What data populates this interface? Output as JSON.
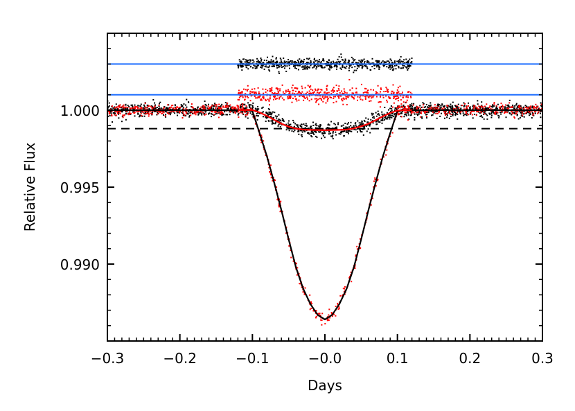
{
  "chart_data": {
    "type": "scatter",
    "title": "",
    "xlabel": "Days",
    "ylabel": "Relative Flux",
    "xlim": [
      -0.3,
      0.3
    ],
    "ylim": [
      0.985,
      1.005
    ],
    "grid": false,
    "legend": "none",
    "x_ticks": [
      {
        "value": -0.3,
        "label": "−0.3"
      },
      {
        "value": -0.2,
        "label": "−0.2"
      },
      {
        "value": -0.1,
        "label": "−0.1"
      },
      {
        "value": 0.0,
        "label": "−0.0"
      },
      {
        "value": 0.1,
        "label": "0.1"
      },
      {
        "value": 0.2,
        "label": "0.2"
      },
      {
        "value": 0.3,
        "label": "0.3"
      }
    ],
    "x_minor_step": 0.01,
    "y_ticks": [
      {
        "value": 0.99,
        "label": "0.990"
      },
      {
        "value": 0.995,
        "label": "0.995"
      },
      {
        "value": 1.0,
        "label": "1.000"
      }
    ],
    "y_minor_step": 0.001,
    "models": [
      {
        "color": "#000000",
        "style": "solid",
        "x": [
          -0.3,
          -0.11,
          -0.1,
          -0.09,
          -0.08,
          -0.07,
          -0.06,
          -0.05,
          -0.04,
          -0.03,
          -0.02,
          -0.01,
          0.0,
          0.01,
          0.02,
          0.03,
          0.04,
          0.05,
          0.06,
          0.07,
          0.08,
          0.09,
          0.1,
          0.11,
          0.3
        ],
        "y": [
          1.0,
          1.0,
          0.99995,
          0.9985,
          0.997,
          0.9953,
          0.9935,
          0.9916,
          0.9898,
          0.9884,
          0.9874,
          0.9867,
          0.9864,
          0.9867,
          0.9874,
          0.9884,
          0.9898,
          0.9916,
          0.9935,
          0.9953,
          0.997,
          0.9985,
          0.99995,
          1.0,
          1.0
        ]
      },
      {
        "color": "#ff0000",
        "style": "solid",
        "x": [
          -0.12,
          -0.1,
          -0.09,
          -0.08,
          -0.07,
          -0.06,
          -0.05,
          -0.04,
          -0.03,
          -0.02,
          -0.01,
          0.0,
          0.01,
          0.02,
          0.03,
          0.04,
          0.05,
          0.06,
          0.07,
          0.08,
          0.09,
          0.1,
          0.12
        ],
        "y": [
          1.0,
          1.00002,
          0.99985,
          0.99963,
          0.99938,
          0.99912,
          0.99893,
          0.9988,
          0.99874,
          0.99872,
          0.99871,
          0.9987,
          0.99871,
          0.99872,
          0.99874,
          0.99882,
          0.99895,
          0.99912,
          0.99935,
          0.9996,
          0.99982,
          0.99998,
          1.0
        ]
      }
    ],
    "reference_lines": [
      {
        "y": 1.003,
        "color": "#1f6fff",
        "style": "solid"
      },
      {
        "y": 1.001,
        "color": "#1f6fff",
        "style": "solid"
      },
      {
        "y": 0.9988,
        "color": "#000000",
        "style": "dashed"
      }
    ],
    "scatter_series": [
      {
        "color": "#000000",
        "x_range": [
          -0.3,
          0.3
        ],
        "follows_model": 1,
        "rms": 0.00022
      },
      {
        "color": "#ff0000",
        "x_range": [
          -0.3,
          0.3
        ],
        "follows_model": 0,
        "rms": 0.00019
      },
      {
        "color": "#000000",
        "x_range": [
          -0.12,
          0.12
        ],
        "level": 1.003,
        "rms": 0.00018
      },
      {
        "color": "#ff0000",
        "x_range": [
          -0.12,
          0.12
        ],
        "level": 1.001,
        "rms": 0.00026
      }
    ]
  }
}
